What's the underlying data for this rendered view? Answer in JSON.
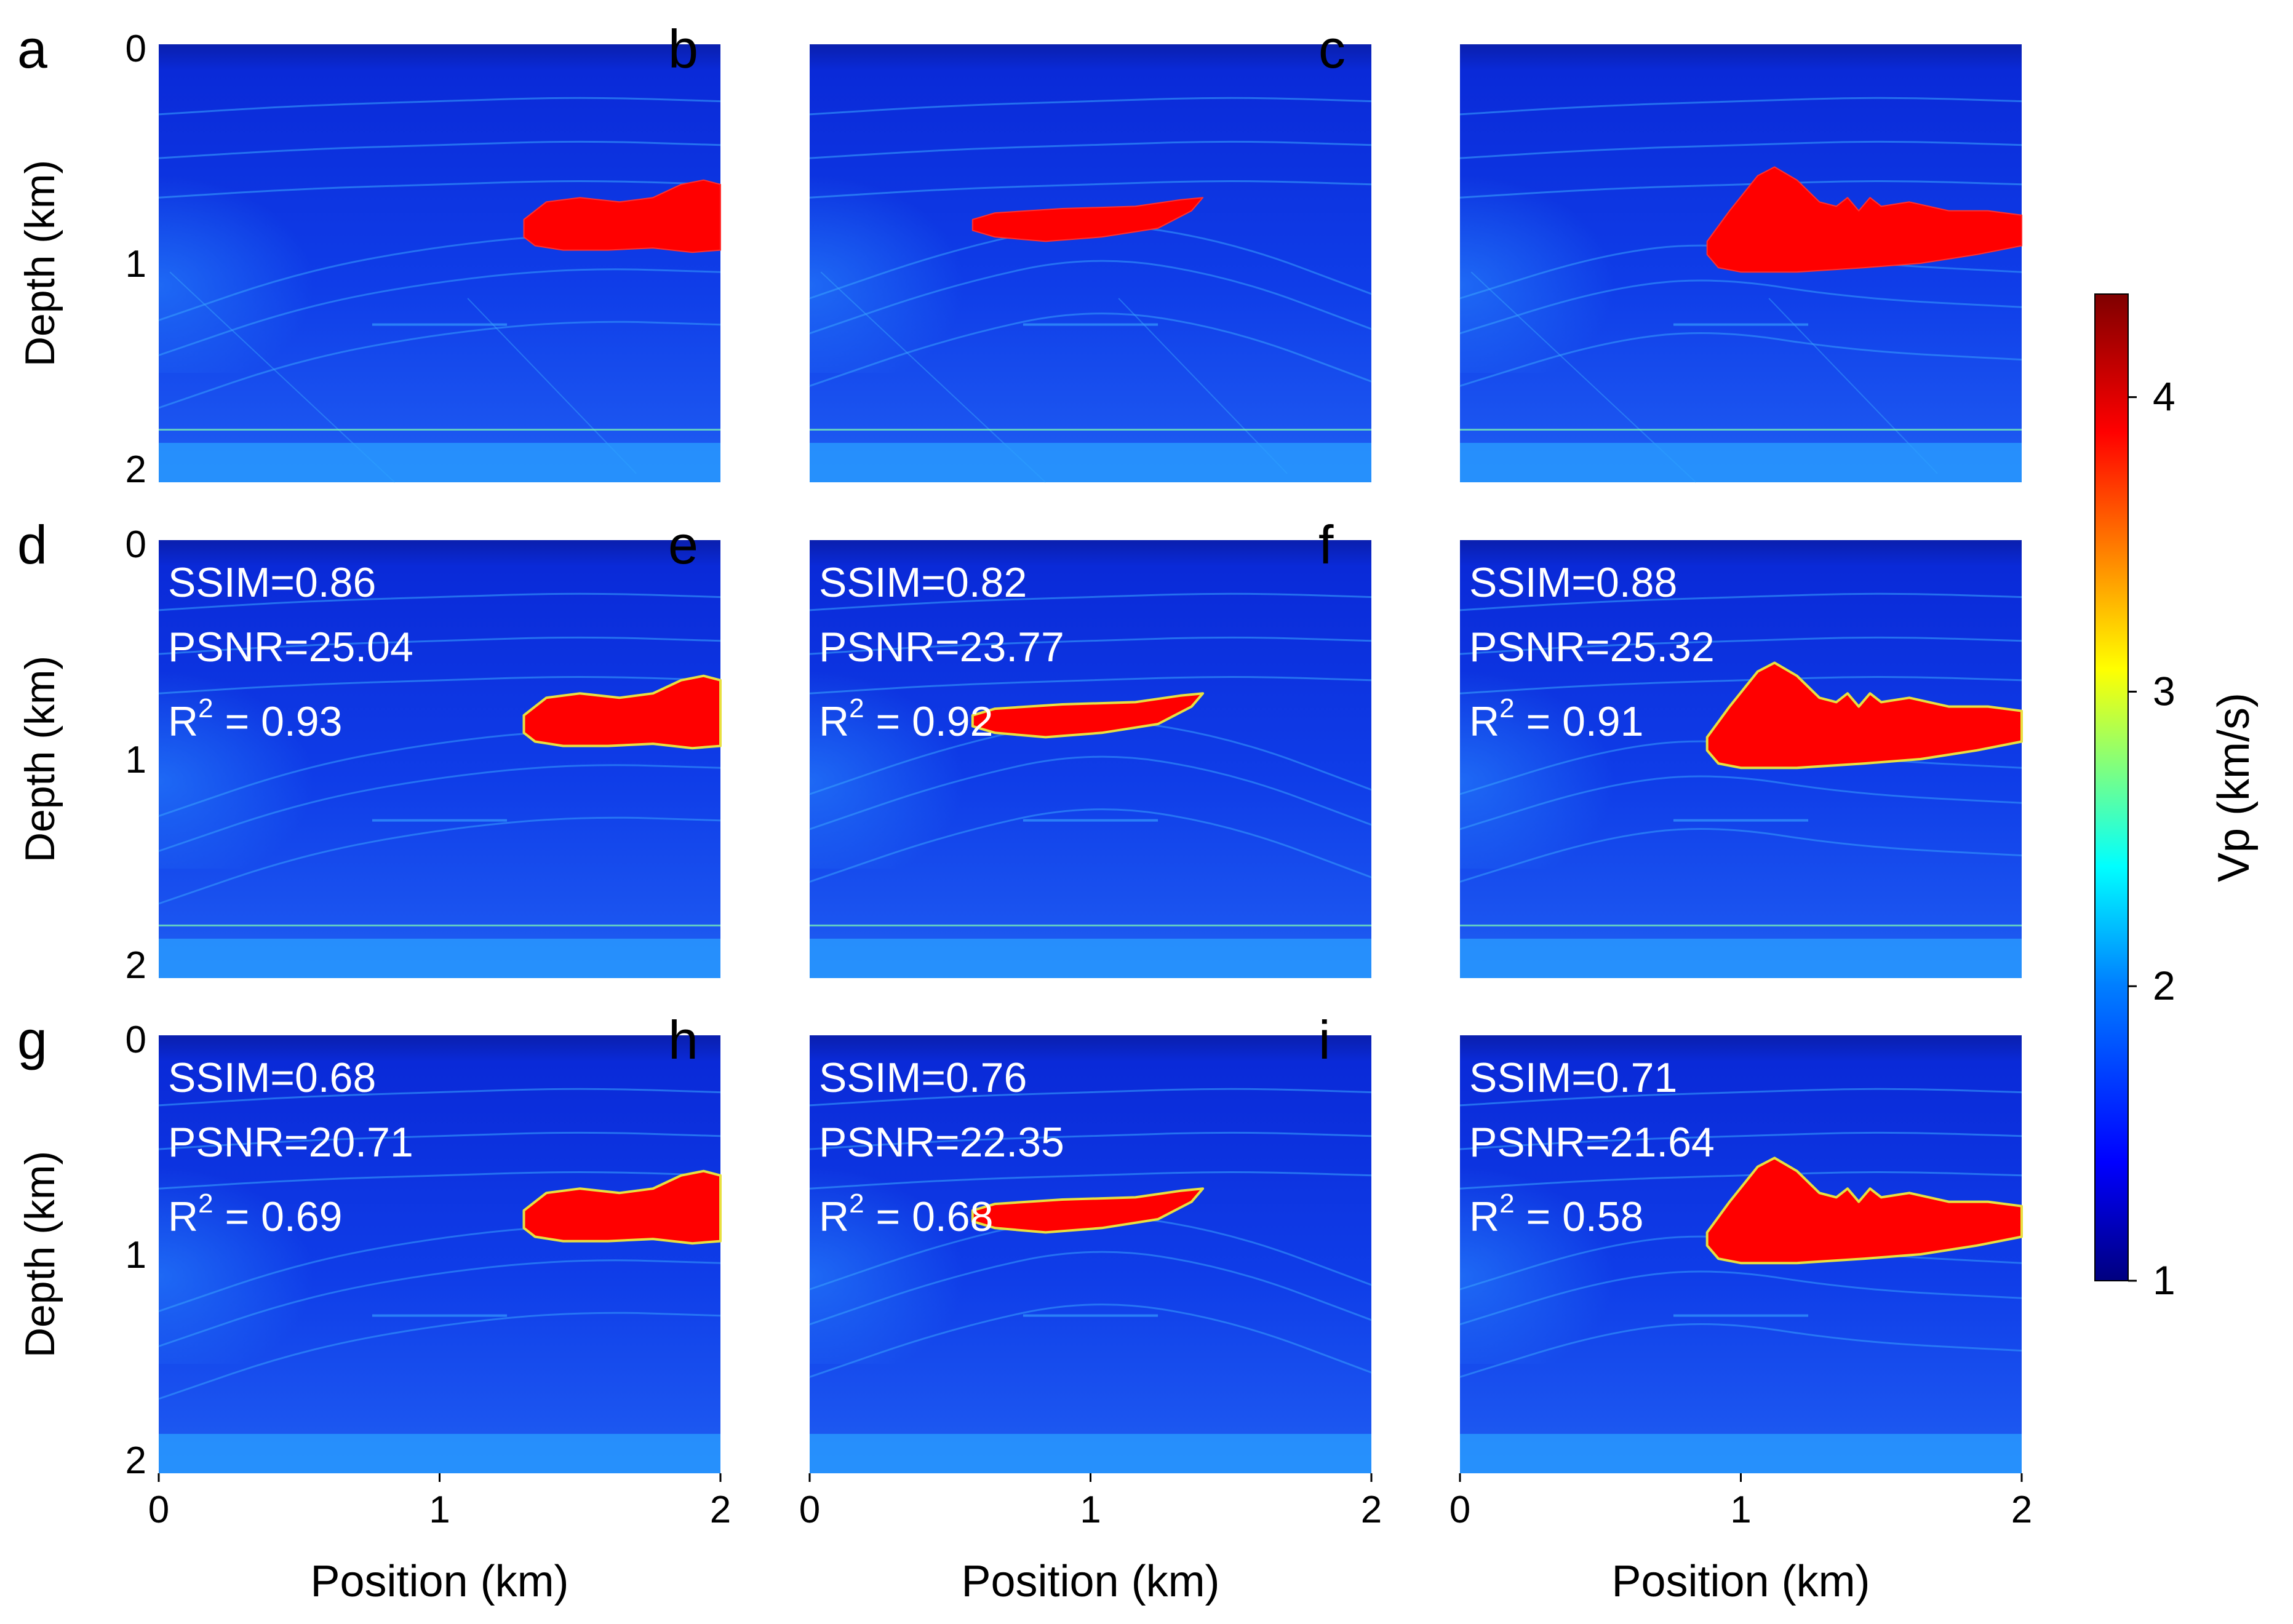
{
  "chart_data": {
    "type": "heatmap",
    "panels": [
      {
        "id": "a",
        "label": "a"
      },
      {
        "id": "b",
        "label": "b"
      },
      {
        "id": "c",
        "label": "c"
      },
      {
        "id": "d",
        "label": "d",
        "metrics": {
          "ssim": "SSIM=0.86",
          "psnr": "PSNR=25.04",
          "r2_value": " = 0.93"
        }
      },
      {
        "id": "e",
        "label": "e",
        "metrics": {
          "ssim": "SSIM=0.82",
          "psnr": "PSNR=23.77",
          "r2_value": " = 0.92"
        }
      },
      {
        "id": "f",
        "label": "f",
        "metrics": {
          "ssim": "SSIM=0.88",
          "psnr": "PSNR=25.32",
          "r2_value": " = 0.91"
        }
      },
      {
        "id": "g",
        "label": "g",
        "metrics": {
          "ssim": "SSIM=0.68",
          "psnr": "PSNR=20.71",
          "r2_value": " = 0.69"
        }
      },
      {
        "id": "h",
        "label": "h",
        "metrics": {
          "ssim": "SSIM=0.76",
          "psnr": "PSNR=22.35",
          "r2_value": " = 0.68"
        }
      },
      {
        "id": "i",
        "label": "i",
        "metrics": {
          "ssim": "SSIM=0.71",
          "psnr": "PSNR=21.64",
          "r2_value": " = 0.58"
        }
      }
    ],
    "r2_prefix": "R",
    "r2_exponent": "2",
    "x_axis": {
      "label": "Position (km)",
      "range": [
        0,
        2
      ],
      "ticks": [
        "0",
        "1",
        "2"
      ]
    },
    "y_axis": {
      "label": "Depth (km)",
      "range": [
        0,
        2
      ],
      "ticks": [
        "0",
        "1",
        "2"
      ],
      "inverted": true
    },
    "colorbar": {
      "label": "Vp (km/s)",
      "range": [
        1,
        4.35
      ],
      "ticks": [
        "1",
        "2",
        "3",
        "4"
      ]
    },
    "colormap": [
      "#00007f",
      "#0000ff",
      "#007fff",
      "#00ffff",
      "#7fff7f",
      "#ffff00",
      "#ff7f00",
      "#ff0000",
      "#7f0000"
    ],
    "colors": {
      "background_deep": "#1b3ce6",
      "background_shallow": "#0a2ad8",
      "salt_body": "#ff0000",
      "layer_line": "#3aa8ff",
      "bottom_layer": "#2aa0ff"
    }
  }
}
